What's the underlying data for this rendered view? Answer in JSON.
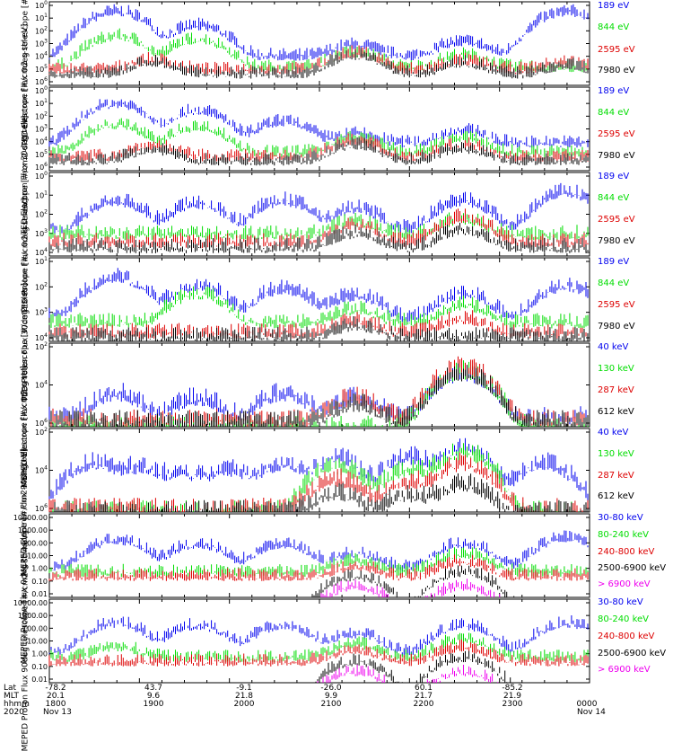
{
  "footer": {
    "row_labels": [
      "Lat",
      "MLT",
      "hhmm",
      "2020"
    ],
    "lat": [
      "-78.2",
      "43.7",
      "-9.1",
      "-26.0",
      "60.1",
      "-85.2"
    ],
    "mlt": [
      "20.1",
      "9.6",
      "21.8",
      "9.9",
      "21.7",
      "21.9"
    ],
    "hhmm": [
      "1800",
      "1900",
      "2000",
      "2100",
      "2200",
      "2300",
      "0000"
    ],
    "date_start": "Nov 13",
    "date_end": "Nov 14"
  },
  "colors": {
    "black": "#000000",
    "red": "#dd0000",
    "green": "#00dd00",
    "blue": "#0000ee",
    "magenta": "#ee00ee"
  },
  "chart_data": [
    {
      "type": "line",
      "title": "TED Electron Flux 0 deg telescope",
      "ylabel": "TED Electron Flux 0deg telescope [#/cm2-s-str-eV]",
      "yscale": "log",
      "ylim": [
        1,
        1000000
      ],
      "yticks": [
        "10^0",
        "10^1",
        "10^2",
        "10^3",
        "10^4",
        "10^5",
        "10^6"
      ],
      "series": [
        {
          "name": "7980 eV",
          "color": "black",
          "base": 10,
          "peaks": [
            [
              23,
              60
            ],
            [
              68,
              200
            ],
            [
              92,
              50
            ],
            [
              115,
              30
            ]
          ]
        },
        {
          "name": "2595 eV",
          "color": "red",
          "base": 20,
          "peaks": [
            [
              23,
              80
            ],
            [
              68,
              300
            ],
            [
              92,
              70
            ],
            [
              115,
              50
            ]
          ]
        },
        {
          "name": "844 eV",
          "color": "green",
          "base": 30,
          "peaks": [
            [
              15,
              5000
            ],
            [
              33,
              3000
            ],
            [
              68,
              300
            ],
            [
              92,
              200
            ]
          ]
        },
        {
          "name": "189 eV",
          "color": "blue",
          "base": 200,
          "peaks": [
            [
              15,
              300000
            ],
            [
              33,
              30000
            ],
            [
              68,
              1000
            ],
            [
              92,
              2000
            ],
            [
              115,
              300000
            ]
          ]
        }
      ]
    },
    {
      "type": "line",
      "title": "TED Electron Flux 30 deg telescope",
      "ylabel": "TED Electron Flux 30deg telescope [#/cm2-s-str-eV]",
      "yscale": "log",
      "ylim": [
        1,
        1000000
      ],
      "yticks": [
        "10^0",
        "10^1",
        "10^2",
        "10^3",
        "10^4",
        "10^5",
        "10^6"
      ],
      "series": [
        {
          "name": "7980 eV",
          "color": "black",
          "base": 8,
          "peaks": [
            [
              23,
              40
            ],
            [
              68,
              100
            ],
            [
              92,
              50
            ]
          ]
        },
        {
          "name": "2595 eV",
          "color": "red",
          "base": 15,
          "peaks": [
            [
              23,
              80
            ],
            [
              68,
              200
            ],
            [
              92,
              100
            ]
          ]
        },
        {
          "name": "844 eV",
          "color": "green",
          "base": 30,
          "peaks": [
            [
              15,
              3000
            ],
            [
              33,
              2000
            ],
            [
              68,
              300
            ],
            [
              92,
              300
            ]
          ]
        },
        {
          "name": "189 eV",
          "color": "blue",
          "base": 150,
          "peaks": [
            [
              15,
              100000
            ],
            [
              33,
              30000
            ],
            [
              52,
              5000
            ],
            [
              68,
              500
            ],
            [
              92,
              1000
            ]
          ]
        }
      ]
    },
    {
      "type": "line",
      "title": "TED Proton Flux 0 deg telescope",
      "ylabel": "TED Proton Flux 0deg telescope [#/cm2-s-str-eV]",
      "yscale": "log",
      "ylim": [
        1,
        100000
      ],
      "yticks": [
        "10^0",
        "10^1",
        "10^2",
        "10^3",
        "10^4"
      ],
      "series": [
        {
          "name": "7980 eV",
          "color": "black",
          "base": 5,
          "peaks": [
            [
              68,
              30
            ],
            [
              92,
              50
            ]
          ]
        },
        {
          "name": "2595 eV",
          "color": "red",
          "base": 10,
          "peaks": [
            [
              68,
              100
            ],
            [
              92,
              300
            ]
          ]
        },
        {
          "name": "844 eV",
          "color": "green",
          "base": 30,
          "peaks": [
            [
              68,
              150
            ],
            [
              92,
              200
            ]
          ]
        },
        {
          "name": "189 eV",
          "color": "blue",
          "base": 60,
          "peaks": [
            [
              15,
              3000
            ],
            [
              33,
              2000
            ],
            [
              52,
              3000
            ],
            [
              68,
              1000
            ],
            [
              92,
              3000
            ],
            [
              115,
              10000
            ]
          ]
        }
      ]
    },
    {
      "type": "line",
      "title": "TED Proton Flux 30 deg telescope",
      "ylabel": "TED Proton Flux 30deg telescope [#/cm2-s-str-eV]",
      "yscale": "log",
      "ylim": [
        1,
        100000
      ],
      "yticks": [
        "10^1",
        "10^2",
        "10^3",
        "10^4"
      ],
      "series": [
        {
          "name": "7980 eV",
          "color": "black",
          "base": 3,
          "peaks": [
            [
              68,
              10
            ]
          ]
        },
        {
          "name": "2595 eV",
          "color": "red",
          "base": 5,
          "peaks": [
            [
              68,
              20
            ],
            [
              92,
              30
            ]
          ]
        },
        {
          "name": "844 eV",
          "color": "green",
          "base": 20,
          "peaks": [
            [
              33,
              1000
            ],
            [
              68,
              100
            ],
            [
              92,
              200
            ]
          ]
        },
        {
          "name": "189 eV",
          "color": "blue",
          "base": 40,
          "peaks": [
            [
              15,
              10000
            ],
            [
              33,
              3000
            ],
            [
              52,
              2000
            ],
            [
              68,
              800
            ],
            [
              92,
              1000
            ],
            [
              115,
              3000
            ]
          ]
        }
      ]
    },
    {
      "type": "line",
      "title": "MEPED Electron Flux 0 deg telescope",
      "ylabel": "MEPED Electron Flux 0deg telescope [#/cm2-s-str]",
      "yscale": "log",
      "ylim": [
        100,
        1000000
      ],
      "yticks": [
        "10^2",
        "10^4",
        "10^6"
      ],
      "series": [
        {
          "name": "612 keV",
          "color": "black",
          "base": 250,
          "peaks": [
            [
              68,
              1500
            ],
            [
              92,
              50000
            ]
          ]
        },
        {
          "name": "287 keV",
          "color": "red",
          "base": 300,
          "peaks": [
            [
              68,
              3000
            ],
            [
              92,
              100000
            ]
          ]
        },
        {
          "name": "130 keV",
          "color": "green",
          "base": 150,
          "peaks": [
            [
              92,
              60000
            ]
          ]
        },
        {
          "name": "40 keV",
          "color": "blue",
          "base": 400,
          "peaks": [
            [
              15,
              5000
            ],
            [
              33,
              3000
            ],
            [
              52,
              5000
            ],
            [
              68,
              3000
            ],
            [
              92,
              50000
            ]
          ]
        }
      ]
    },
    {
      "type": "line",
      "title": "MEPED Electron Flux 90 deg telescope",
      "ylabel": "MEPED Electron Flux 90deg telescope [#/cm2-s-str]",
      "yscale": "log",
      "ylim": [
        100,
        1000000
      ],
      "yticks": [
        "10^2",
        "10^4",
        "10^6"
      ],
      "series": [
        {
          "name": "612 keV",
          "color": "black",
          "base": 150,
          "peaks": [
            [
              64,
              1000
            ],
            [
              80,
              800
            ],
            [
              92,
              3000
            ]
          ]
        },
        {
          "name": "287 keV",
          "color": "red",
          "base": 200,
          "peaks": [
            [
              64,
              5000
            ],
            [
              80,
              4000
            ],
            [
              92,
              30000
            ]
          ]
        },
        {
          "name": "130 keV",
          "color": "green",
          "base": 150,
          "peaks": [
            [
              64,
              20000
            ],
            [
              80,
              15000
            ],
            [
              92,
              100000
            ]
          ]
        },
        {
          "name": "40 keV",
          "color": "blue",
          "base": 300,
          "peaks": [
            [
              10,
              30000
            ],
            [
              20,
              20000
            ],
            [
              30,
              10000
            ],
            [
              40,
              15000
            ],
            [
              52,
              30000
            ],
            [
              64,
              50000
            ],
            [
              80,
              60000
            ],
            [
              92,
              150000
            ],
            [
              110,
              30000
            ]
          ]
        }
      ]
    },
    {
      "type": "line",
      "title": "MEPED Proton Flux 0 deg telescope",
      "ylabel": "MEPED Proton Flux 0deg telescope [#/cm2-s-str-keV]",
      "yscale": "log",
      "ylim": [
        0.01,
        10000
      ],
      "yticks": [
        "10000.00",
        "1000.00",
        "100.00",
        "10.00",
        "1.00",
        "0.10",
        "0.01"
      ],
      "series": [
        {
          "name": "> 6900 keV",
          "color": "magenta",
          "base": 0,
          "peaks": [
            [
              68,
              0.1
            ],
            [
              92,
              0.1
            ]
          ]
        },
        {
          "name": "2500-6900 keV",
          "color": "black",
          "base": 0,
          "peaks": [
            [
              68,
              0.5
            ],
            [
              92,
              1
            ]
          ]
        },
        {
          "name": "240-800 keV",
          "color": "red",
          "base": 0.5,
          "peaks": [
            [
              68,
              2
            ],
            [
              92,
              5
            ]
          ]
        },
        {
          "name": "80-240 keV",
          "color": "green",
          "base": 1,
          "peaks": [
            [
              68,
              5
            ],
            [
              92,
              20
            ]
          ]
        },
        {
          "name": "30-80 keV",
          "color": "blue",
          "base": 2,
          "peaks": [
            [
              15,
              200
            ],
            [
              33,
              100
            ],
            [
              52,
              100
            ],
            [
              68,
              20
            ],
            [
              92,
              100
            ],
            [
              115,
              300
            ]
          ]
        }
      ]
    },
    {
      "type": "line",
      "title": "MEPED Proton Flux 90 deg telescope",
      "ylabel": "MEPED Proton Flux 90deg telescope [#/cm2-s-str-keV]",
      "yscale": "log",
      "ylim": [
        0.01,
        10000
      ],
      "yticks": [
        "10000.00",
        "1000.00",
        "100.00",
        "10.00",
        "1.00",
        "0.10",
        "0.01"
      ],
      "series": [
        {
          "name": "> 6900 keV",
          "color": "magenta",
          "base": 0,
          "peaks": [
            [
              68,
              0.1
            ],
            [
              92,
              0.1
            ]
          ]
        },
        {
          "name": "2500-6900 keV",
          "color": "black",
          "base": 0,
          "peaks": [
            [
              68,
              0.5
            ],
            [
              92,
              1
            ]
          ]
        },
        {
          "name": "240-800 keV",
          "color": "red",
          "base": 0.5,
          "peaks": [
            [
              68,
              3
            ],
            [
              92,
              5
            ]
          ]
        },
        {
          "name": "80-240 keV",
          "color": "green",
          "base": 1,
          "peaks": [
            [
              15,
              5
            ],
            [
              68,
              8
            ],
            [
              92,
              20
            ]
          ]
        },
        {
          "name": "30-80 keV",
          "color": "blue",
          "base": 2,
          "peaks": [
            [
              15,
              300
            ],
            [
              33,
              200
            ],
            [
              52,
              200
            ],
            [
              68,
              50
            ],
            [
              92,
              200
            ],
            [
              115,
              300
            ]
          ]
        }
      ]
    }
  ]
}
